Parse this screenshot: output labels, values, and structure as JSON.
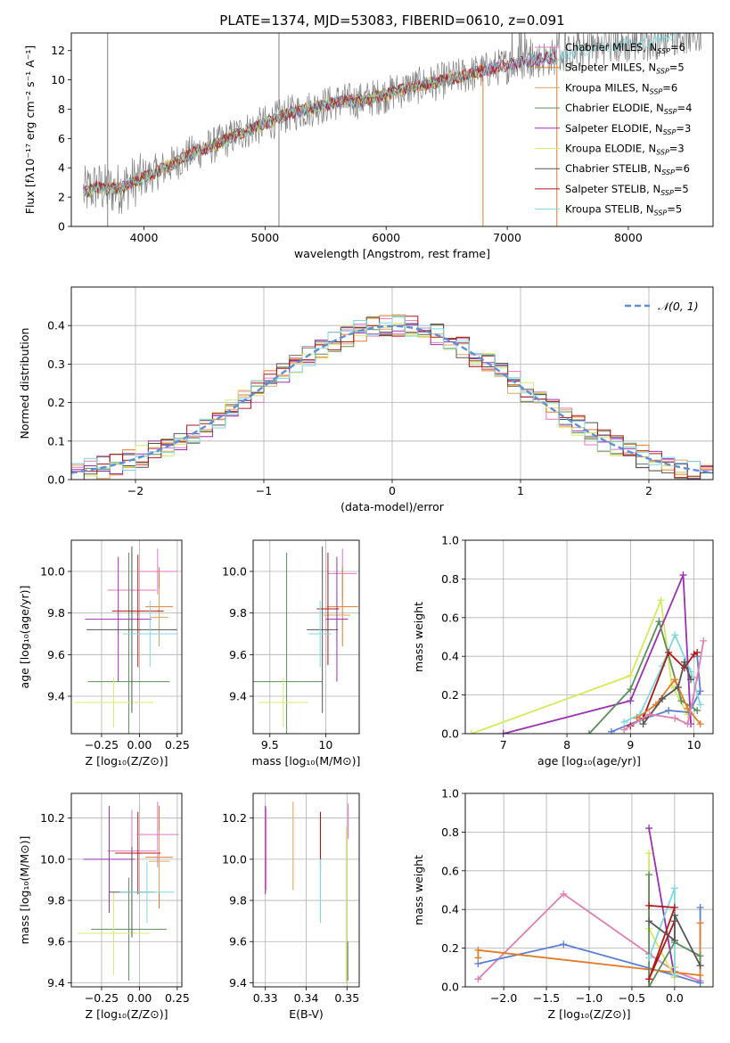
{
  "figure": {
    "title": "PLATE=1374, MJD=53083, FIBERID=0610, z=0.091"
  },
  "colors": {
    "data": "#808080",
    "series": [
      "#e377c2",
      "#e07b29",
      "#d8a766",
      "#5b8f5b",
      "#9b30b0",
      "#dbe86a",
      "#555555",
      "#b01818",
      "#7fd8e0"
    ],
    "gauss": "#5b8fd6",
    "w_blue": "#5b7fd6",
    "w_orange": "#e07b29",
    "w_pink": "#e080b0",
    "w_green": "#5b8f5b",
    "w_purple": "#9b30b0",
    "w_yellow": "#d6e85a",
    "w_gray": "#555555",
    "w_red": "#b01818",
    "w_cyan": "#7fd8e0"
  },
  "chart_data": [
    {
      "id": "spectrum",
      "type": "line",
      "xlabel": "wavelength [Angstrom, rest frame]",
      "ylabel": "Flux [fλ10⁻¹⁷ erg cm⁻² s⁻¹ A⁻¹]",
      "xlim": [
        3400,
        8700
      ],
      "ylim": [
        0,
        13.2
      ],
      "xticks": [
        4000,
        5000,
        6000,
        7000,
        8000
      ],
      "yticks": [
        0,
        2,
        4,
        6,
        8,
        10,
        12
      ],
      "grid": false,
      "legend_position": "right",
      "legend": [
        "Chabrier MILES, NSSP=6",
        "Salpeter MILES, NSSP=5",
        "Kroupa MILES, NSSP=6",
        "Chabrier ELODIE, NSSP=4",
        "Salpeter ELODIE, NSSP=3",
        "Kroupa ELODIE, NSSP=3",
        "Chabrier STELIB, NSSP=6",
        "Salpeter STELIB, NSSP=5",
        "Kroupa STELIB, NSSP=5"
      ],
      "continuum": [
        [
          3500,
          2.3
        ],
        [
          3600,
          2.7
        ],
        [
          3700,
          2.5
        ],
        [
          3800,
          2.6
        ],
        [
          3900,
          3.0
        ],
        [
          4000,
          3.3
        ],
        [
          4200,
          4.1
        ],
        [
          4400,
          5.0
        ],
        [
          4600,
          5.6
        ],
        [
          4800,
          6.4
        ],
        [
          5000,
          7.0
        ],
        [
          5200,
          7.7
        ],
        [
          5400,
          8.1
        ],
        [
          5600,
          8.5
        ],
        [
          5800,
          8.6
        ],
        [
          6000,
          9.0
        ],
        [
          6200,
          9.5
        ],
        [
          6400,
          9.8
        ],
        [
          6600,
          10.2
        ],
        [
          6800,
          10.6
        ],
        [
          7000,
          11.0
        ],
        [
          7200,
          11.3
        ],
        [
          7400,
          11.6
        ],
        [
          7800,
          12.3
        ],
        [
          8000,
          12.4
        ],
        [
          8200,
          12.6
        ],
        [
          8400,
          13.0
        ]
      ],
      "model_end": [
        7400,
        7000,
        6800,
        6800,
        7400,
        6800,
        7400,
        7400,
        8400
      ]
    },
    {
      "id": "residual-histogram",
      "type": "bar",
      "xlabel": "(data-model)/error",
      "ylabel": "Normed distribution",
      "xlim": [
        -2.5,
        2.5
      ],
      "ylim": [
        0,
        0.5
      ],
      "xticks": [
        -2,
        -1,
        0,
        1,
        2
      ],
      "yticks": [
        0.0,
        0.1,
        0.2,
        0.3,
        0.4
      ],
      "grid": true,
      "legend": [
        "𝒩(0, 1)"
      ],
      "legend_position": "top-right",
      "bin_width": 0.1
    },
    {
      "id": "age-vs-Z",
      "type": "scatter",
      "xlabel": "Z [log₁₀(Z/Z⊙)]",
      "ylabel": "age  [log₁₀(age/yr)]",
      "xlim": [
        -0.45,
        0.28
      ],
      "ylim": [
        9.22,
        10.15
      ],
      "xticks": [
        -0.25,
        0.0,
        0.25
      ],
      "xticklabels": [
        "−0.25",
        "0.00",
        "0.25"
      ],
      "yticks": [
        9.4,
        9.6,
        9.8,
        10.0
      ],
      "grid": true,
      "crosses": [
        {
          "c": 0,
          "x": -0.05,
          "y": 9.91,
          "xe": 0.16,
          "ye": 0.18
        },
        {
          "c": 1,
          "x": 0.13,
          "y": 9.83,
          "xe": 0.09,
          "ye": 0.19
        },
        {
          "c": 2,
          "x": 0.13,
          "y": 9.78,
          "xe": 0.06,
          "ye": 0.14
        },
        {
          "c": 3,
          "x": -0.07,
          "y": 9.47,
          "xe": 0.27,
          "ye": 0.62
        },
        {
          "c": 4,
          "x": -0.14,
          "y": 9.77,
          "xe": 0.22,
          "ye": 0.3
        },
        {
          "c": 5,
          "x": -0.17,
          "y": 9.37,
          "xe": 0.26,
          "ye": 0.12
        },
        {
          "c": 6,
          "x": -0.05,
          "y": 9.72,
          "xe": 0.3,
          "ye": 0.4
        },
        {
          "c": 7,
          "x": -0.01,
          "y": 9.81,
          "xe": 0.17,
          "ye": 0.27
        },
        {
          "c": 8,
          "x": 0.07,
          "y": 9.7,
          "xe": 0.18,
          "ye": 0.16
        },
        {
          "c": 0,
          "x": 0.12,
          "y": 10.0,
          "xe": 0.13,
          "ye": 0.11
        }
      ]
    },
    {
      "id": "age-vs-mass",
      "type": "scatter",
      "xlabel": "mass [log₁₀(M/M⊙)]",
      "ylabel": "",
      "xlim": [
        9.35,
        10.3
      ],
      "ylim": [
        9.22,
        10.15
      ],
      "xticks": [
        9.5,
        10.0
      ],
      "yticks": [
        9.4,
        9.6,
        9.8,
        10.0
      ],
      "grid": true,
      "crosses": [
        {
          "c": 0,
          "x": 10.15,
          "y": 9.99,
          "xe": 0.13,
          "ye": 0.12
        },
        {
          "c": 1,
          "x": 10.15,
          "y": 9.83,
          "xe": 0.14,
          "ye": 0.19
        },
        {
          "c": 2,
          "x": 10.1,
          "y": 9.79,
          "xe": 0.12,
          "ye": 0.12
        },
        {
          "c": 3,
          "x": 9.65,
          "y": 9.47,
          "xe": 0.32,
          "ye": 0.62
        },
        {
          "c": 4,
          "x": 10.1,
          "y": 9.77,
          "xe": 0.1,
          "ye": 0.3
        },
        {
          "c": 5,
          "x": 9.62,
          "y": 9.37,
          "xe": 0.22,
          "ye": 0.12
        },
        {
          "c": 6,
          "x": 9.97,
          "y": 9.72,
          "xe": 0.14,
          "ye": 0.4
        },
        {
          "c": 7,
          "x": 10.02,
          "y": 9.82,
          "xe": 0.1,
          "ye": 0.27
        },
        {
          "c": 8,
          "x": 9.95,
          "y": 9.7,
          "xe": 0.1,
          "ye": 0.16
        }
      ]
    },
    {
      "id": "weight-vs-age",
      "type": "line",
      "xlabel": "age  [log₁₀(age/yr)]",
      "ylabel": "mass weight",
      "xlim": [
        6.4,
        10.3
      ],
      "ylim": [
        0,
        1.0
      ],
      "xticks": [
        7,
        8,
        9,
        10
      ],
      "yticks": [
        0.0,
        0.2,
        0.4,
        0.6,
        0.8,
        1.0
      ],
      "grid": true,
      "series": [
        {
          "c": "w_yellow",
          "points": [
            [
              6.5,
              0.0
            ],
            [
              9.0,
              0.3
            ],
            [
              9.48,
              0.69
            ],
            [
              9.65,
              0.25
            ],
            [
              9.9,
              0.1
            ]
          ]
        },
        {
          "c": "w_purple",
          "points": [
            [
              7.0,
              0.0
            ],
            [
              9.0,
              0.17
            ],
            [
              9.83,
              0.82
            ],
            [
              9.95,
              0.05
            ]
          ]
        },
        {
          "c": "w_green",
          "points": [
            [
              8.35,
              0.0
            ],
            [
              9.0,
              0.23
            ],
            [
              9.45,
              0.58
            ],
            [
              9.8,
              0.17
            ],
            [
              10.05,
              0.12
            ]
          ]
        },
        {
          "c": "w_blue",
          "points": [
            [
              8.7,
              0.01
            ],
            [
              9.15,
              0.07
            ],
            [
              9.6,
              0.12
            ],
            [
              9.92,
              0.11
            ],
            [
              10.1,
              0.22
            ],
            [
              10.05,
              0.4
            ]
          ]
        },
        {
          "c": "w_cyan",
          "points": [
            [
              8.9,
              0.06
            ],
            [
              9.15,
              0.1
            ],
            [
              9.5,
              0.35
            ],
            [
              9.7,
              0.51
            ],
            [
              9.95,
              0.32
            ],
            [
              10.1,
              0.15
            ]
          ]
        },
        {
          "c": "w_red",
          "points": [
            [
              9.0,
              0.04
            ],
            [
              9.2,
              0.08
            ],
            [
              9.6,
              0.42
            ],
            [
              9.85,
              0.34
            ],
            [
              10.0,
              0.41
            ],
            [
              10.05,
              0.42
            ]
          ]
        },
        {
          "c": "w_orange",
          "points": [
            [
              9.1,
              0.08
            ],
            [
              9.4,
              0.15
            ],
            [
              9.7,
              0.28
            ],
            [
              9.9,
              0.13
            ],
            [
              10.1,
              0.05
            ]
          ]
        },
        {
          "c": "w_gray",
          "points": [
            [
              9.2,
              0.05
            ],
            [
              9.5,
              0.18
            ],
            [
              9.75,
              0.24
            ],
            [
              9.85,
              0.37
            ],
            [
              9.95,
              0.28
            ]
          ]
        },
        {
          "c": "w_pink",
          "points": [
            [
              8.9,
              0.02
            ],
            [
              9.3,
              0.1
            ],
            [
              9.7,
              0.08
            ],
            [
              9.9,
              0.05
            ],
            [
              10.05,
              0.29
            ],
            [
              10.15,
              0.48
            ]
          ]
        }
      ]
    },
    {
      "id": "mass-vs-Z",
      "type": "scatter",
      "xlabel": "Z [log₁₀(Z/Z⊙)]",
      "ylabel": "mass [log₁₀(M/M⊙)]",
      "xlim": [
        -0.45,
        0.28
      ],
      "ylim": [
        9.38,
        10.32
      ],
      "xticks": [
        -0.25,
        0.0,
        0.25
      ],
      "xticklabels": [
        "−0.25",
        "0.00",
        "0.25"
      ],
      "yticks": [
        9.4,
        9.6,
        9.8,
        10.0,
        10.2
      ],
      "grid": true,
      "crosses": [
        {
          "c": 0,
          "x": -0.05,
          "y": 10.04,
          "xe": 0.16,
          "ye": 0.2
        },
        {
          "c": 1,
          "x": 0.13,
          "y": 10.01,
          "xe": 0.09,
          "ye": 0.25
        },
        {
          "c": 2,
          "x": 0.13,
          "y": 9.99,
          "xe": 0.07,
          "ye": 0.15
        },
        {
          "c": 3,
          "x": -0.07,
          "y": 9.66,
          "xe": 0.25,
          "ye": 0.25
        },
        {
          "c": 4,
          "x": -0.2,
          "y": 10.0,
          "xe": 0.17,
          "ye": 0.26
        },
        {
          "c": 5,
          "x": -0.17,
          "y": 9.64,
          "xe": 0.24,
          "ye": 0.2
        },
        {
          "c": 6,
          "x": -0.05,
          "y": 9.84,
          "xe": 0.15,
          "ye": 0.22
        },
        {
          "c": 7,
          "x": -0.01,
          "y": 10.03,
          "xe": 0.15,
          "ye": 0.2
        },
        {
          "c": 8,
          "x": 0.05,
          "y": 9.84,
          "xe": 0.18,
          "ye": 0.15
        },
        {
          "c": 0,
          "x": 0.12,
          "y": 10.12,
          "xe": 0.14,
          "ye": 0.16
        }
      ]
    },
    {
      "id": "mass-vs-ebv",
      "type": "scatter",
      "xlabel": "E(B-V)",
      "ylabel": "",
      "xlim": [
        0.327,
        0.353
      ],
      "ylim": [
        9.38,
        10.32
      ],
      "xticks": [
        0.33,
        0.34,
        0.35
      ],
      "yticks": [
        9.4,
        9.6,
        9.8,
        10.0,
        10.2
      ],
      "grid": true,
      "vlines": [
        {
          "c": 4,
          "x": 0.33,
          "y0": 9.83,
          "y1": 10.26
        },
        {
          "c": 0,
          "x": 0.3302,
          "y0": 9.85,
          "y1": 10.25
        },
        {
          "c": 2,
          "x": 0.3368,
          "y0": 9.85,
          "y1": 10.28
        },
        {
          "c": 7,
          "x": 0.3435,
          "y0": 9.95,
          "y1": 10.23
        },
        {
          "c": 8,
          "x": 0.3435,
          "y0": 9.69,
          "y1": 10.0
        },
        {
          "c": 5,
          "x": 0.3498,
          "y0": 9.4,
          "y1": 10.16
        },
        {
          "c": 3,
          "x": 0.3502,
          "y0": 9.41,
          "y1": 9.6
        },
        {
          "c": 0,
          "x": 0.3503,
          "y0": 10.1,
          "y1": 10.27
        }
      ]
    },
    {
      "id": "weight-vs-Z",
      "type": "line",
      "xlabel": "Z [log₁₀(Z/Z⊙)]",
      "ylabel": "mass weight",
      "xlim": [
        -2.45,
        0.45
      ],
      "ylim": [
        0,
        1.0
      ],
      "xticks": [
        -2.0,
        -1.5,
        -1.0,
        -0.5,
        0.0
      ],
      "xticklabels": [
        "−2.0",
        "−1.5",
        "−1.0",
        "−0.5",
        "0.0"
      ],
      "yticks": [
        0.0,
        0.2,
        0.4,
        0.6,
        0.8,
        1.0
      ],
      "grid": true,
      "series": [
        {
          "c": "w_pink",
          "points": [
            [
              -2.3,
              0.04
            ],
            [
              -1.3,
              0.48
            ],
            [
              -0.3,
              0.17
            ],
            [
              0.0,
              0.08
            ],
            [
              0.3,
              0.03
            ]
          ]
        },
        {
          "c": "w_blue",
          "points": [
            [
              -2.3,
              0.12
            ],
            [
              -1.3,
              0.22
            ],
            [
              0.0,
              0.06
            ],
            [
              0.3,
              0.02
            ],
            [
              0.3,
              0.41
            ]
          ]
        },
        {
          "c": "w_orange",
          "points": [
            [
              -2.3,
              0.15
            ],
            [
              -2.3,
              0.19
            ],
            [
              -0.3,
              0.09
            ],
            [
              0.3,
              0.06
            ],
            [
              0.3,
              0.33
            ]
          ]
        },
        {
          "c": "w_purple",
          "points": [
            [
              -0.3,
              0.82
            ],
            [
              0.0,
              0.05
            ],
            [
              0.0,
              0.1
            ]
          ]
        },
        {
          "c": "w_yellow",
          "points": [
            [
              -0.3,
              0.69
            ],
            [
              -0.3,
              0.3
            ],
            [
              0.0,
              0.05
            ],
            [
              0.0,
              0.1
            ]
          ]
        },
        {
          "c": "w_green",
          "points": [
            [
              -0.3,
              0.58
            ],
            [
              -0.3,
              0.0
            ],
            [
              0.0,
              0.23
            ],
            [
              0.3,
              0.16
            ],
            [
              0.3,
              0.11
            ]
          ]
        },
        {
          "c": "w_cyan",
          "points": [
            [
              -0.3,
              0.15
            ],
            [
              0.0,
              0.51
            ],
            [
              0.0,
              0.06
            ]
          ]
        },
        {
          "c": "w_red",
          "points": [
            [
              -0.3,
              0.42
            ],
            [
              0.0,
              0.41
            ],
            [
              -0.3,
              0.04
            ],
            [
              0.0,
              0.34
            ]
          ]
        },
        {
          "c": "w_gray",
          "points": [
            [
              -0.3,
              0.34
            ],
            [
              0.0,
              0.24
            ],
            [
              0.0,
              0.37
            ],
            [
              0.3,
              0.11
            ]
          ]
        }
      ]
    }
  ]
}
